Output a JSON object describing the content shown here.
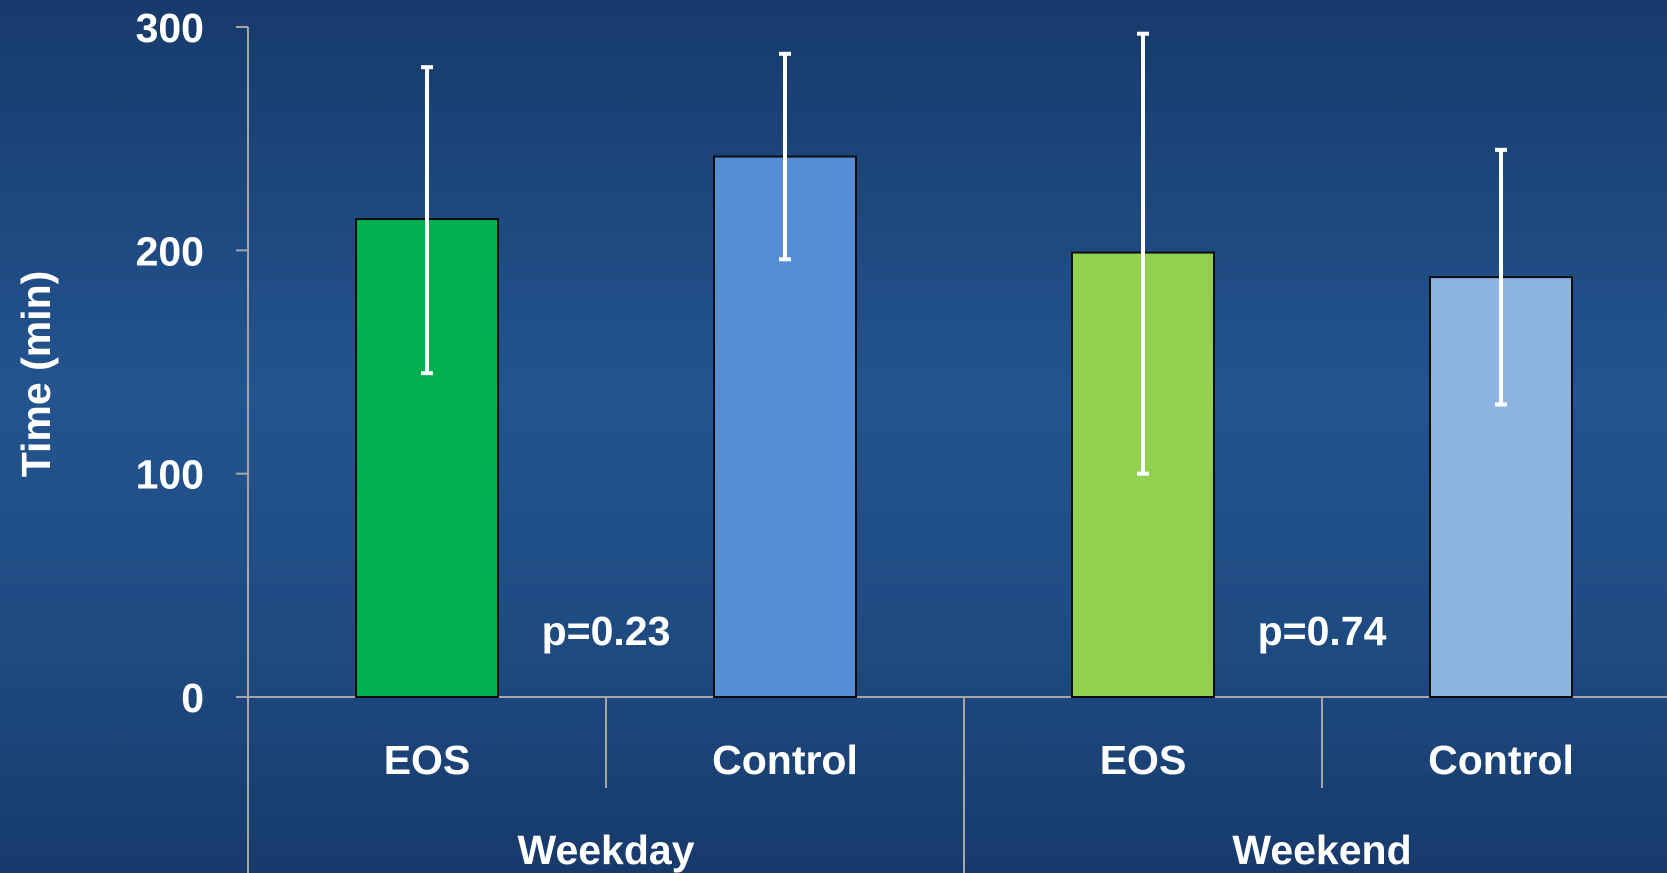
{
  "chart_data": {
    "type": "bar",
    "title": "",
    "xlabel": "",
    "ylabel": "Time (min)",
    "ylim": [
      0,
      300
    ],
    "yticks": [
      0,
      100,
      200,
      300
    ],
    "grid": false,
    "groups": [
      {
        "name": "Weekday",
        "p_value": "p=0.23",
        "bars": [
          {
            "category": "EOS",
            "value": 214,
            "error_low": 145,
            "error_high": 282,
            "color": "#00b04f"
          },
          {
            "category": "Control",
            "value": 242,
            "error_low": 196,
            "error_high": 288,
            "color": "#558ed5"
          }
        ]
      },
      {
        "name": "Weekend",
        "p_value": "p=0.74",
        "bars": [
          {
            "category": "EOS",
            "value": 199,
            "error_low": 100,
            "error_high": 297,
            "color": "#92d050"
          },
          {
            "category": "Control",
            "value": 188,
            "error_low": 131,
            "error_high": 245,
            "color": "#8eb4e3"
          }
        ]
      }
    ]
  }
}
